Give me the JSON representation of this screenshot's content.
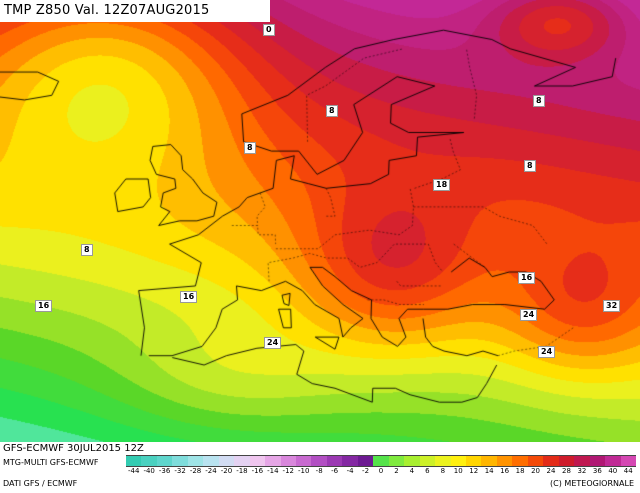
{
  "header": {
    "title": "TMP  Z850  Val.  12Z07AUG2015"
  },
  "footer": {
    "run": "GFS-ECMWF  30JUL2015  12Z",
    "model": "MTG-MULTI  GFS-ECMWF",
    "data_source": "DATI GFS / ECMWF",
    "copyright": "(C) METEOGIORNALE"
  },
  "map": {
    "field": "Temperature at 850 hPa (°C)",
    "region": "Europe / North Atlantic / Mediterranean",
    "labels": [
      {
        "text": "0",
        "lon": 8,
        "lat": 77
      },
      {
        "text": "8",
        "lon": 36,
        "lat": 64
      },
      {
        "text": "8",
        "lon": 14,
        "lat": 63
      },
      {
        "text": "8",
        "lon": 5,
        "lat": 59
      },
      {
        "text": "8",
        "lon": 36,
        "lat": 57
      },
      {
        "text": "18",
        "lon": 26,
        "lat": 55
      },
      {
        "text": "8",
        "lon": -15,
        "lat": 48
      },
      {
        "text": "16",
        "lon": -4,
        "lat": 43
      },
      {
        "text": "16",
        "lon": -22,
        "lat": 42
      },
      {
        "text": "24",
        "lon": 6,
        "lat": 38
      },
      {
        "text": "16",
        "lon": 37,
        "lat": 45
      },
      {
        "text": "24",
        "lon": 38,
        "lat": 41
      },
      {
        "text": "32",
        "lon": 48,
        "lat": 42
      },
      {
        "text": "24",
        "lon": 41,
        "lat": 37
      }
    ]
  },
  "colorbar": {
    "ticks": [
      "-44",
      "-40",
      "-36",
      "-32",
      "-28",
      "-24",
      "-20",
      "-18",
      "-16",
      "-14",
      "-12",
      "-10",
      "-8",
      "-6",
      "-4",
      "-2",
      "0",
      "2",
      "4",
      "6",
      "8",
      "10",
      "12",
      "14",
      "16",
      "18",
      "20",
      "24",
      "28",
      "32",
      "36",
      "40",
      "44"
    ],
    "colors": [
      "#33ccb2",
      "#4ad1c0",
      "#5fd6cd",
      "#7fdddc",
      "#9fe4e7",
      "#b9e3f0",
      "#d2dcf3",
      "#e4d2f2",
      "#f0c6ef",
      "#e6a6e6",
      "#d987dc",
      "#c86ad0",
      "#b24fc3",
      "#9b39b3",
      "#8428a3",
      "#6d1a92",
      "#55e34a",
      "#7fea3e",
      "#a8ef30",
      "#cdf128",
      "#ecf31f",
      "#fff00f",
      "#ffd500",
      "#ffb600",
      "#ff9300",
      "#ff6e00",
      "#f44a08",
      "#e32b18",
      "#cf1c2c",
      "#c01850",
      "#b01874",
      "#c02a95",
      "#d548b3"
    ]
  }
}
